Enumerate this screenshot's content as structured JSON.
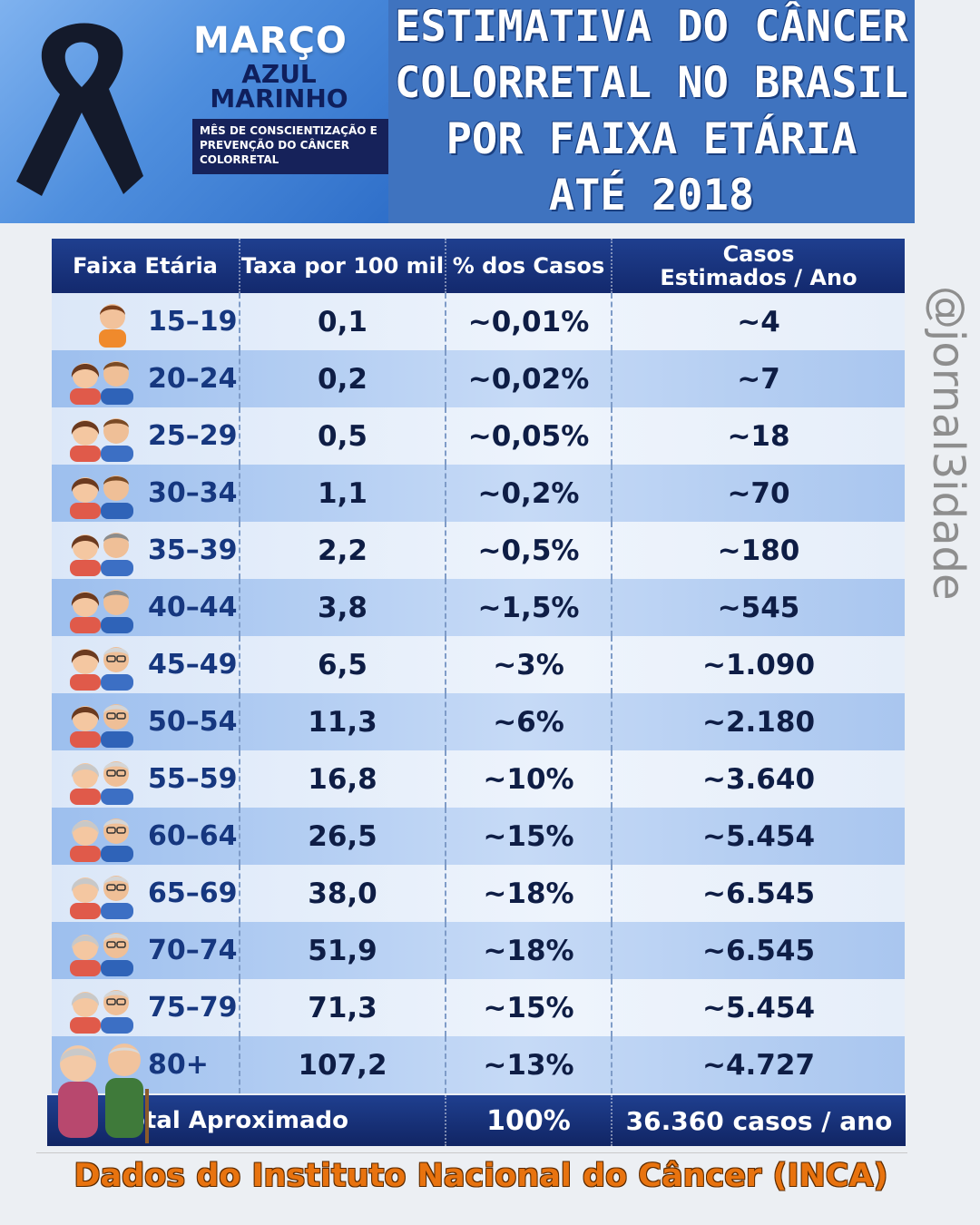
{
  "campaign": {
    "month": "MARÇO",
    "name": "AZUL MARINHO",
    "subtitle": "MÊS DE CONSCIENTIZAÇÃO E PREVENÇÃO DO CÂNCER COLORRETAL"
  },
  "title": {
    "line1": "ESTIMATIVA DO CÂNCER",
    "line2": "COLORRETAL NO BRASIL",
    "line3": "POR FAIXA ETÁRIA",
    "line4": "ATÉ 2018"
  },
  "watermark": "@jornal3idade",
  "table": {
    "headers": {
      "age": "Faixa Etária",
      "rate": "Taxa por 100 mil",
      "percent": "% dos Casos",
      "cases_line1": "Casos",
      "cases_line2": "Estimados / Ano"
    },
    "rows": [
      {
        "age": "15–19",
        "rate": "0,1",
        "percent": "~0,01%",
        "cases": "~4"
      },
      {
        "age": "20–24",
        "rate": "0,2",
        "percent": "~0,02%",
        "cases": "~7"
      },
      {
        "age": "25–29",
        "rate": "0,5",
        "percent": "~0,05%",
        "cases": "~18"
      },
      {
        "age": "30–34",
        "rate": "1,1",
        "percent": "~0,2%",
        "cases": "~70"
      },
      {
        "age": "35–39",
        "rate": "2,2",
        "percent": "~0,5%",
        "cases": "~180"
      },
      {
        "age": "40–44",
        "rate": "3,8",
        "percent": "~1,5%",
        "cases": "~545"
      },
      {
        "age": "45–49",
        "rate": "6,5",
        "percent": "~3%",
        "cases": "~1.090"
      },
      {
        "age": "50–54",
        "rate": "11,3",
        "percent": "~6%",
        "cases": "~2.180"
      },
      {
        "age": "55–59",
        "rate": "16,8",
        "percent": "~10%",
        "cases": "~3.640"
      },
      {
        "age": "60–64",
        "rate": "26,5",
        "percent": "~15%",
        "cases": "~5.454"
      },
      {
        "age": "65–69",
        "rate": "38,0",
        "percent": "~18%",
        "cases": "~6.545"
      },
      {
        "age": "70–74",
        "rate": "51,9",
        "percent": "~18%",
        "cases": "~6.545"
      },
      {
        "age": "75–79",
        "rate": "71,3",
        "percent": "~15%",
        "cases": "~5.454"
      },
      {
        "age": "80+",
        "rate": "107,2",
        "percent": "~13%",
        "cases": "~4.727"
      }
    ],
    "footer": {
      "label": "Total Aproximado",
      "percent": "100%",
      "cases": "36.360 casos / ano"
    }
  },
  "source": "Dados do Instituto Nacional do Câncer (INCA)",
  "colors": {
    "navy": "#13296d",
    "title_blue": "#3f73bf",
    "source_orange": "#e8730f"
  }
}
